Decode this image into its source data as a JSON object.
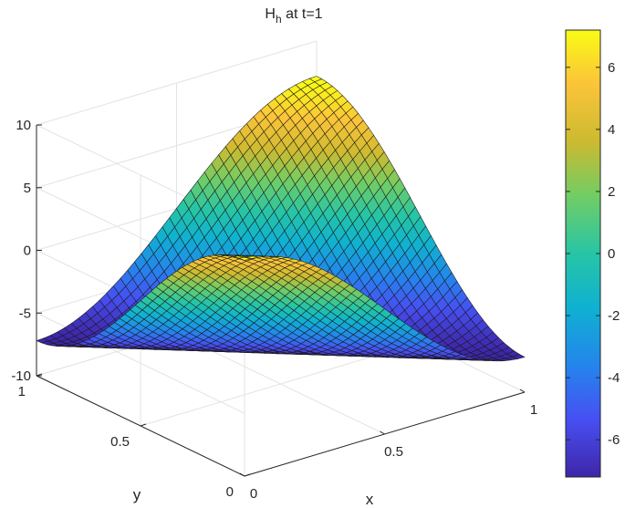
{
  "chart_data": {
    "type": "surface",
    "title": {
      "main": "H",
      "sub": "h",
      "rest": " at t=1"
    },
    "xlabel": "x",
    "ylabel": "y",
    "zlabel": "",
    "xlim": [
      0,
      1
    ],
    "ylim": [
      0,
      1
    ],
    "zlim": [
      -10,
      10
    ],
    "x_ticks": [
      "0",
      "0.5",
      "1"
    ],
    "y_ticks": [
      "0",
      "0.5",
      "1"
    ],
    "z_ticks": [
      "-10",
      "-5",
      "0",
      "5",
      "10"
    ],
    "colorbar": {
      "limits": [
        -7.2,
        7.2
      ],
      "ticks": [
        "-6",
        "-4",
        "-2",
        "0",
        "2",
        "4",
        "6"
      ],
      "colormap": "parula"
    },
    "surface": {
      "function": "H(x,y) = 7.2*cos(pi*(x+y))",
      "grid_n": 40,
      "corner_values": {
        "x0_y0": 7.2,
        "x1_y0": -7.2,
        "x0_y1": -7.2,
        "x1_y1": 7.2
      }
    },
    "grid": true,
    "colors": {
      "edge": "#1a1a1a",
      "axis": "#262626",
      "grid": "#e3e3e3"
    }
  }
}
